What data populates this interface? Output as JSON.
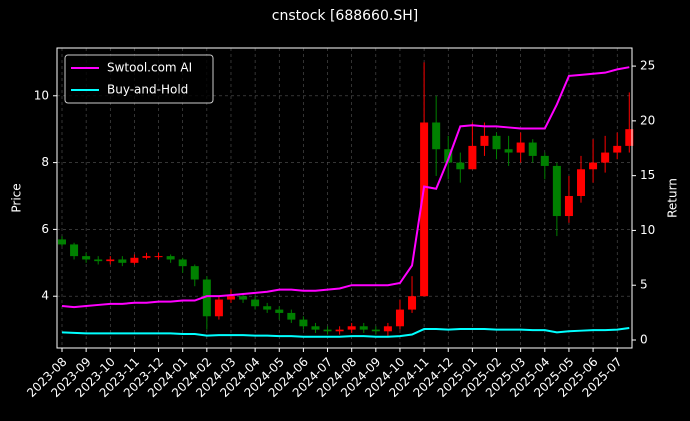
{
  "chart_data": {
    "type": "candlestick",
    "title": "cnstock [688660.SH]",
    "y_label": "Price",
    "y2_label": "Return",
    "categories": [
      "2023-08",
      null,
      "2023-09",
      null,
      "2023-10",
      null,
      "2023-11",
      null,
      "2023-12",
      null,
      "2024-01",
      null,
      "2024-02",
      null,
      "2024-03",
      null,
      "2024-04",
      null,
      "2024-05",
      null,
      "2024-06",
      null,
      "2024-07",
      null,
      "2024-08",
      null,
      "2024-09",
      null,
      "2024-10",
      null,
      "2024-11",
      null,
      "2024-12",
      null,
      "2025-01",
      null,
      "2025-02",
      null,
      "2025-03",
      null,
      "2025-04",
      null,
      "2025-05",
      null,
      "2025-06",
      null,
      "2025-07",
      null
    ],
    "open": [
      5.7,
      5.55,
      5.2,
      5.1,
      5.05,
      5.1,
      5.0,
      5.15,
      5.2,
      5.2,
      5.1,
      4.9,
      4.5,
      3.4,
      3.9,
      4.0,
      3.9,
      3.7,
      3.6,
      3.5,
      3.3,
      3.1,
      3.0,
      2.95,
      3.0,
      3.1,
      3.0,
      2.95,
      3.1,
      3.6,
      4.0,
      9.2,
      8.4,
      8.0,
      7.8,
      8.5,
      8.8,
      8.4,
      8.3,
      8.6,
      8.2,
      7.9,
      6.4,
      7.0,
      7.8,
      8.0,
      8.3,
      8.5
    ],
    "high": [
      5.8,
      5.6,
      5.3,
      5.2,
      5.2,
      5.2,
      5.25,
      5.3,
      5.3,
      5.25,
      5.15,
      4.95,
      4.6,
      4.0,
      4.2,
      4.1,
      4.0,
      3.8,
      3.7,
      3.6,
      3.4,
      3.2,
      3.1,
      3.1,
      3.2,
      3.2,
      3.1,
      3.2,
      3.9,
      4.6,
      11.0,
      10.0,
      8.8,
      8.3,
      9.2,
      9.2,
      8.9,
      8.8,
      8.9,
      8.7,
      8.3,
      8.0,
      7.6,
      8.2,
      8.7,
      8.8,
      8.9,
      10.1
    ],
    "low": [
      5.5,
      5.1,
      5.0,
      4.95,
      4.95,
      4.9,
      4.95,
      5.1,
      5.1,
      5.0,
      4.7,
      4.3,
      3.0,
      3.3,
      3.8,
      3.8,
      3.6,
      3.5,
      3.3,
      3.2,
      3.0,
      2.9,
      2.85,
      2.85,
      2.9,
      2.9,
      2.85,
      2.8,
      3.0,
      3.5,
      4.0,
      7.6,
      7.5,
      7.4,
      7.8,
      8.2,
      8.1,
      7.9,
      8.0,
      8.0,
      7.5,
      5.8,
      6.2,
      6.8,
      7.4,
      7.7,
      8.1,
      8.3
    ],
    "close": [
      5.55,
      5.2,
      5.1,
      5.05,
      5.1,
      5.0,
      5.15,
      5.2,
      5.2,
      5.1,
      4.9,
      4.5,
      3.4,
      3.9,
      4.0,
      3.9,
      3.7,
      3.6,
      3.5,
      3.3,
      3.1,
      3.0,
      2.95,
      3.0,
      3.1,
      3.0,
      2.95,
      3.1,
      3.6,
      4.0,
      9.2,
      8.4,
      8.0,
      7.8,
      8.5,
      8.8,
      8.4,
      8.3,
      8.6,
      8.2,
      7.9,
      6.4,
      7.0,
      7.8,
      8.0,
      8.3,
      8.5,
      9.0
    ],
    "up_color": "#ff0000",
    "down_color": "#008000",
    "series": [
      {
        "name": "Swtool.com AI",
        "color": "#ff00ff",
        "axis": "y2",
        "values": [
          3.1,
          3.0,
          3.1,
          3.2,
          3.3,
          3.3,
          3.4,
          3.4,
          3.5,
          3.5,
          3.6,
          3.6,
          4.0,
          4.0,
          4.1,
          4.2,
          4.3,
          4.4,
          4.6,
          4.6,
          4.5,
          4.5,
          4.6,
          4.7,
          5.0,
          5.0,
          5.0,
          5.0,
          5.2,
          6.8,
          14.0,
          13.8,
          16.5,
          19.5,
          19.6,
          19.5,
          19.5,
          19.4,
          19.3,
          19.3,
          19.3,
          21.5,
          24.1,
          24.2,
          24.3,
          24.4,
          24.7,
          24.9
        ]
      },
      {
        "name": "Buy-and-Hold",
        "color": "#00ffff",
        "axis": "y2",
        "values": [
          0.7,
          0.65,
          0.6,
          0.6,
          0.6,
          0.6,
          0.6,
          0.6,
          0.6,
          0.6,
          0.55,
          0.55,
          0.4,
          0.45,
          0.45,
          0.45,
          0.4,
          0.4,
          0.35,
          0.35,
          0.3,
          0.3,
          0.3,
          0.3,
          0.35,
          0.35,
          0.3,
          0.3,
          0.35,
          0.5,
          1.0,
          1.0,
          0.95,
          1.0,
          1.0,
          1.0,
          0.95,
          0.95,
          0.95,
          0.9,
          0.9,
          0.7,
          0.8,
          0.85,
          0.9,
          0.9,
          0.95,
          1.1
        ]
      }
    ],
    "ylim": [
      2.45,
      11.43
    ],
    "yticks": [
      4,
      6,
      8,
      10
    ],
    "y2lim": [
      -0.73,
      26.65
    ],
    "y2ticks": [
      0,
      5,
      10,
      15,
      20,
      25
    ],
    "grid": true,
    "legend": "upper left"
  }
}
